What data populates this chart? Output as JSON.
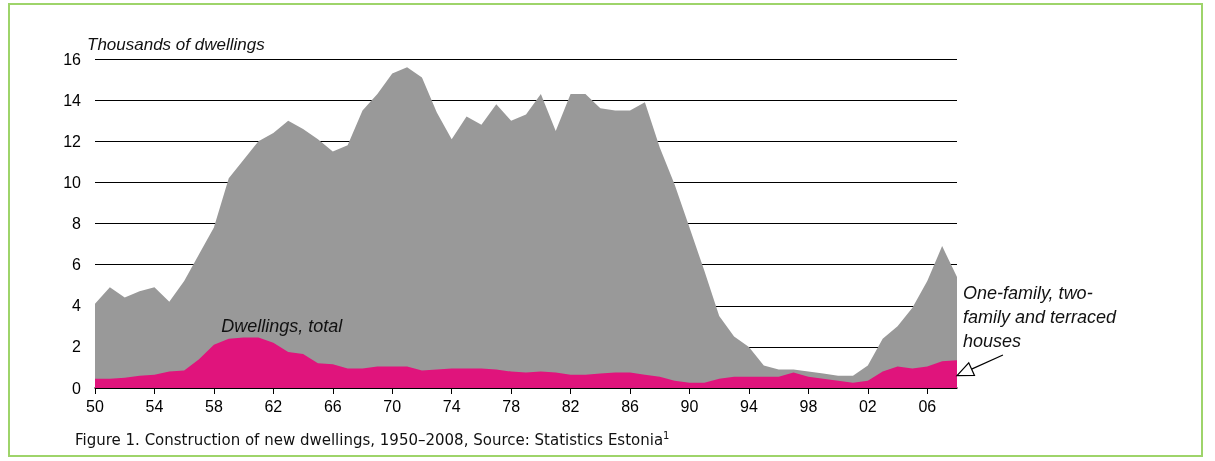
{
  "chart_data": {
    "type": "area",
    "ylabel": "Thousands of dwellings",
    "x": [
      1950,
      1951,
      1952,
      1953,
      1954,
      1955,
      1956,
      1957,
      1958,
      1959,
      1960,
      1961,
      1962,
      1963,
      1964,
      1965,
      1966,
      1967,
      1968,
      1969,
      1970,
      1971,
      1972,
      1973,
      1974,
      1975,
      1976,
      1977,
      1978,
      1979,
      1980,
      1981,
      1982,
      1983,
      1984,
      1985,
      1986,
      1987,
      1988,
      1989,
      1990,
      1991,
      1992,
      1993,
      1994,
      1995,
      1996,
      1997,
      1998,
      1999,
      2000,
      2001,
      2002,
      2003,
      2004,
      2005,
      2006,
      2007,
      2008
    ],
    "series": [
      {
        "name": "Dwellings, total",
        "color": "#999999",
        "values": [
          4.1,
          4.9,
          4.4,
          4.7,
          4.9,
          4.2,
          5.2,
          6.5,
          7.8,
          10.2,
          11.1,
          12.0,
          12.4,
          13.0,
          12.6,
          12.1,
          11.5,
          11.8,
          13.5,
          14.3,
          15.3,
          15.6,
          15.1,
          13.4,
          12.1,
          13.2,
          12.8,
          13.8,
          13.0,
          13.3,
          14.3,
          12.5,
          14.3,
          14.3,
          13.6,
          13.5,
          13.5,
          13.9,
          11.7,
          9.9,
          7.8,
          5.7,
          3.5,
          2.5,
          2.0,
          1.1,
          0.9,
          0.9,
          0.8,
          0.7,
          0.6,
          0.6,
          1.1,
          2.4,
          3.0,
          3.9,
          5.2,
          6.9,
          5.4
        ]
      },
      {
        "name": "One-family, two-family and terraced houses",
        "color": "#e0147c",
        "values": [
          0.45,
          0.45,
          0.5,
          0.6,
          0.65,
          0.8,
          0.85,
          1.4,
          2.1,
          2.4,
          2.45,
          2.45,
          2.2,
          1.75,
          1.65,
          1.2,
          1.15,
          0.95,
          0.95,
          1.05,
          1.05,
          1.05,
          0.85,
          0.9,
          0.95,
          0.95,
          0.95,
          0.9,
          0.8,
          0.75,
          0.8,
          0.75,
          0.65,
          0.65,
          0.7,
          0.75,
          0.75,
          0.65,
          0.55,
          0.35,
          0.25,
          0.25,
          0.45,
          0.55,
          0.55,
          0.55,
          0.55,
          0.75,
          0.55,
          0.45,
          0.35,
          0.25,
          0.35,
          0.8,
          1.05,
          0.95,
          1.05,
          1.3,
          1.35
        ]
      }
    ],
    "xlim": [
      1950,
      2008
    ],
    "xticks": [
      {
        "value": 1950,
        "label": "50"
      },
      {
        "value": 1954,
        "label": "54"
      },
      {
        "value": 1958,
        "label": "58"
      },
      {
        "value": 1962,
        "label": "62"
      },
      {
        "value": 1966,
        "label": "66"
      },
      {
        "value": 1970,
        "label": "70"
      },
      {
        "value": 1974,
        "label": "74"
      },
      {
        "value": 1978,
        "label": "78"
      },
      {
        "value": 1982,
        "label": "82"
      },
      {
        "value": 1986,
        "label": "86"
      },
      {
        "value": 1990,
        "label": "90"
      },
      {
        "value": 1994,
        "label": "94"
      },
      {
        "value": 1998,
        "label": "98"
      },
      {
        "value": 2002,
        "label": "02"
      },
      {
        "value": 2006,
        "label": "06"
      }
    ],
    "ylim": [
      0,
      16
    ],
    "yticks": [
      0,
      2,
      4,
      6,
      8,
      10,
      12,
      14,
      16
    ],
    "grid": "y",
    "annotations": [
      "Figure 1. Construction of new dwellings, 1950–2008, Source: Statistics Estonia$^{1}$"
    ]
  }
}
